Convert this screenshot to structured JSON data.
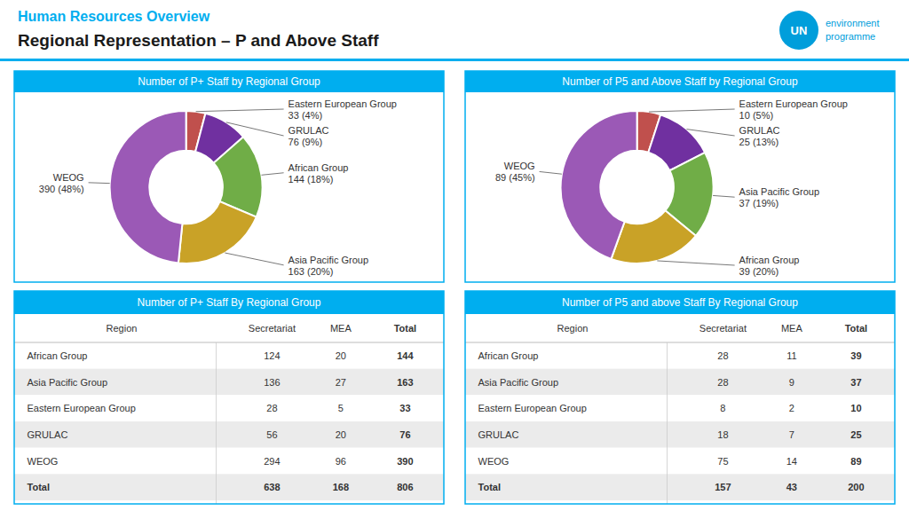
{
  "title": "Regional Representation – P and Above Staff",
  "subtitle": "Human Resources Overview",
  "annotations": [
    "UN",
    "environment",
    "programme"
  ],
  "chart_data": [
    {
      "type": "pie",
      "title": "Number of P+ Staff by Regional Group",
      "categories": [
        "Eastern European Group",
        "GRULAC",
        "African Group",
        "Asia Pacific Group",
        "WEOG"
      ],
      "values": [
        33,
        76,
        144,
        163,
        390
      ],
      "value_labels": [
        "33 (4%)",
        "76 (9%)",
        "144 (18%)",
        "163 (20%)",
        "390 (48%)"
      ],
      "colors": [
        "#C0504D",
        "#7030A0",
        "#70AD47",
        "#C9A227",
        "#9B59B6"
      ],
      "data_labels": true
    },
    {
      "type": "pie",
      "title": "Number of P5 and Above Staff by Regional Group",
      "categories": [
        "Eastern European Group",
        "GRULAC",
        "Asia Pacific Group",
        "African Group",
        "WEOG"
      ],
      "values": [
        10,
        25,
        37,
        39,
        89
      ],
      "value_labels": [
        "10 (5%)",
        "25 (13%)",
        "37 (19%)",
        "39 (20%)",
        "89 (45%)"
      ],
      "colors": [
        "#C0504D",
        "#7030A0",
        "#70AD47",
        "#C9A227",
        "#9B59B6"
      ],
      "data_labels": true
    },
    {
      "type": "table",
      "title": "Number of P+ Staff By Regional Group",
      "category_label": "Region",
      "categories": [
        "African Group",
        "Asia Pacific Group",
        "Eastern European Group",
        "GRULAC",
        "WEOG",
        "Total"
      ],
      "series": [
        {
          "name": "Secretariat",
          "values": [
            124,
            136,
            28,
            56,
            294,
            638
          ]
        },
        {
          "name": "MEA",
          "values": [
            20,
            27,
            5,
            20,
            96,
            168
          ]
        },
        {
          "name": "Total",
          "values": [
            144,
            163,
            33,
            76,
            390,
            806
          ]
        }
      ]
    },
    {
      "type": "table",
      "title": "Number of P5 and above Staff By Regional Group",
      "category_label": "Region",
      "categories": [
        "African Group",
        "Asia Pacific Group",
        "Eastern European Group",
        "GRULAC",
        "WEOG",
        "Total"
      ],
      "series": [
        {
          "name": "Secretariat",
          "values": [
            28,
            28,
            8,
            18,
            75,
            157
          ]
        },
        {
          "name": "MEA",
          "values": [
            11,
            9,
            2,
            7,
            14,
            43
          ]
        },
        {
          "name": "Total",
          "values": [
            39,
            37,
            10,
            25,
            89,
            200
          ]
        }
      ]
    }
  ]
}
